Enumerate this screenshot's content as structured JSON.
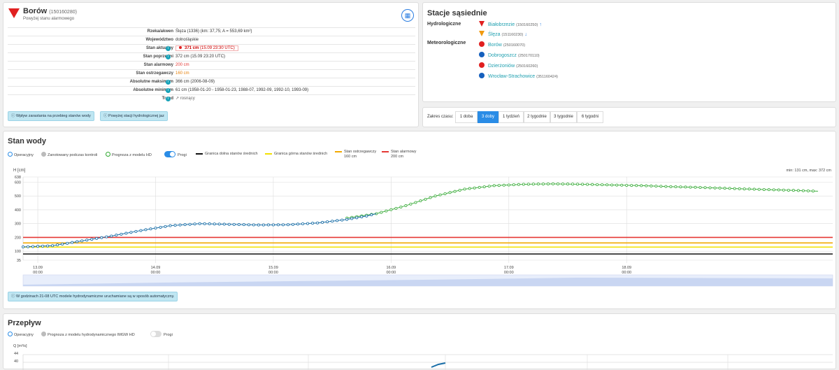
{
  "station": {
    "name": "Borów",
    "id": "(150160280)",
    "status": "Powyżej stanu alarmowego",
    "rows": [
      {
        "label": "Rzeka/akwen",
        "value": "Ślęza (1336) (km: 37,75; A = 553,69 km²)"
      },
      {
        "label": "Województwo",
        "value": "dolnośląskie"
      },
      {
        "label": "Stan aktualny",
        "value_bold": "371 cm",
        "value_extra": "(15.09 23:30 UTC)"
      },
      {
        "label": "Stan poprzedni",
        "value": "372 cm (15.09 23:20 UTC)"
      },
      {
        "label": "Stan alarmowy",
        "value": "200 cm"
      },
      {
        "label": "Stan ostrzegawczy",
        "value": "160 cm"
      },
      {
        "label": "Absolutne maksimum",
        "value": "366 cm (2006-08-09)"
      },
      {
        "label": "Absolutne minimum",
        "value": "61 cm (1958-01-20 - 1958-01-23, 1988-07, 1992-09, 1992-10, 1993-09)"
      },
      {
        "label": "Trend",
        "value": "↗ rosnący"
      }
    ],
    "buttons": [
      "Wpływ zarastania na przebieg stanów wody",
      "Powyżej stacji hydrologicznej jaz"
    ]
  },
  "neighbors": {
    "title": "Stacje sąsiednie",
    "hydro_label": "Hydrologiczne",
    "meteo_label": "Meteorologiczne",
    "hydro": [
      {
        "name": "Białobrzezie",
        "id": "(150160250)",
        "arrow": "↑"
      },
      {
        "name": "Ślęza",
        "id": "(151160230)",
        "arrow": "↓"
      }
    ],
    "meteo": [
      {
        "name": "Borów",
        "id": "(250160070)"
      },
      {
        "name": "Dobrogoszcz",
        "id": "(250170110)"
      },
      {
        "name": "Dzierżoniów",
        "id": "(250160260)"
      },
      {
        "name": "Wrocław-Strachowice",
        "id": "(351160424)"
      }
    ]
  },
  "range": {
    "label": "Zakres czasu:",
    "options": [
      "1 doba",
      "3 doby",
      "1 tydzień",
      "2 tygodnie",
      "3 tygodnie",
      "6 tygodni"
    ],
    "active": "3 doby"
  },
  "water": {
    "title": "Stan wody",
    "legend": {
      "operational": "Operacyjny",
      "checked": "Zanotowany podczas kontroli",
      "forecast": "Prognoza z modelu HD",
      "thresholds": "Progi",
      "lower": "Granica dolna stanów średnich",
      "upper": "Granica górna stanów średnich",
      "warning": "Stan ostrzegawczy",
      "warning_val": "160 cm",
      "alarm": "Stan alarmowy",
      "alarm_val": "200 cm"
    },
    "minmax": "min: 131 cm, max: 372 cm",
    "note": "W godzinach 21-08 UTC modele hydrodynamiczne uruchamiane są w sposób automatyczny."
  },
  "flow": {
    "title": "Przepływ",
    "legend": {
      "operational": "Operacyjny",
      "forecast": "Prognoza z modelu hydrodynamicznego IMGW HD",
      "thresholds": "Progi"
    },
    "ylabel": "Q [m³/s]",
    "yticks": [
      "44",
      "40"
    ]
  },
  "chart_data": {
    "type": "line",
    "ylabel": "H [cm]",
    "ylim": [
      35,
      638
    ],
    "yticks": [
      35,
      100,
      200,
      300,
      400,
      500,
      600,
      638
    ],
    "xticks": [
      {
        "day": "13.09",
        "time": "00:00"
      },
      {
        "day": "14.09",
        "time": "00:00"
      },
      {
        "day": "15.09",
        "time": "00:00"
      },
      {
        "day": "16.09",
        "time": "00:00"
      },
      {
        "day": "17.09",
        "time": "00:00"
      },
      {
        "day": "18.09",
        "time": "00:00"
      }
    ],
    "thresholds": {
      "lower_mean": 80,
      "upper_mean": 130,
      "warning": 160,
      "alarm": 200
    },
    "colors": {
      "operational": "#1a6fa8",
      "forecast": "#3fae3f",
      "alarm": "#e53935",
      "warning": "#f2a900",
      "upper_mean": "#f2e000",
      "lower_mean": "#111111"
    },
    "operational": {
      "x_hours": [
        0,
        6,
        12,
        18,
        21,
        24,
        30,
        36,
        42,
        48,
        54,
        60,
        66,
        70,
        72
      ],
      "y": [
        131,
        140,
        175,
        210,
        230,
        250,
        285,
        300,
        295,
        290,
        292,
        305,
        330,
        355,
        372
      ]
    },
    "forecast": {
      "x_hours": [
        66,
        72,
        78,
        84,
        90,
        96,
        102,
        108,
        114,
        120,
        126,
        132,
        138,
        144,
        150,
        156,
        162
      ],
      "y": [
        340,
        372,
        430,
        500,
        550,
        575,
        585,
        588,
        585,
        580,
        575,
        568,
        562,
        555,
        548,
        542,
        535
      ]
    }
  }
}
